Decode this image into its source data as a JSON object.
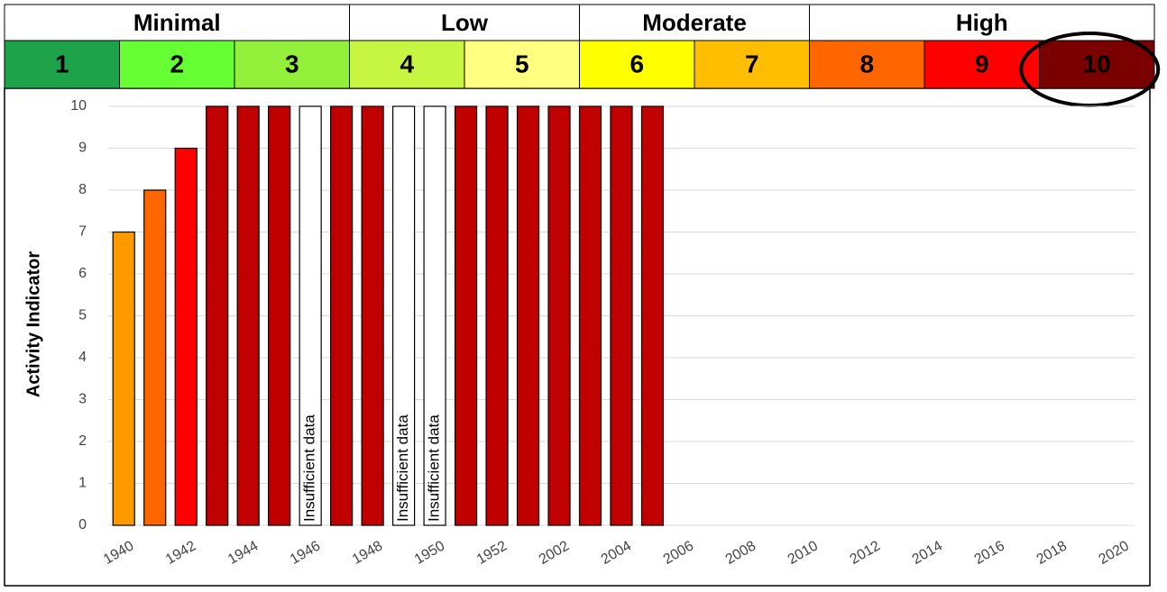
{
  "scale": {
    "groups": [
      {
        "label": "Minimal",
        "span": 3
      },
      {
        "label": "Low",
        "span": 2
      },
      {
        "label": "Moderate",
        "span": 2
      },
      {
        "label": "High",
        "span": 3
      }
    ],
    "levels": [
      {
        "label": "1",
        "color": "#1fa34a"
      },
      {
        "label": "2",
        "color": "#66ff33"
      },
      {
        "label": "3",
        "color": "#92f03a"
      },
      {
        "label": "4",
        "color": "#c6f542"
      },
      {
        "label": "5",
        "color": "#ffff80"
      },
      {
        "label": "6",
        "color": "#ffff00"
      },
      {
        "label": "7",
        "color": "#ffbf00"
      },
      {
        "label": "8",
        "color": "#ff6600"
      },
      {
        "label": "9",
        "color": "#ff0000"
      },
      {
        "label": "10",
        "color": "#7b0000"
      }
    ]
  },
  "chart_data": {
    "type": "bar",
    "y_label": "Activity Indicator",
    "categories": [
      "1940",
      null,
      "1942",
      null,
      "1944",
      null,
      "1946",
      null,
      "1948",
      null,
      "1950",
      null,
      "1952",
      null,
      "2002",
      null,
      "2004",
      null,
      "2006",
      null,
      "2008",
      null,
      "2010",
      null,
      "2012",
      null,
      "2014",
      null,
      "2016",
      null,
      "2018",
      null,
      "2020"
    ],
    "values": [
      7,
      8,
      9,
      10,
      10,
      10,
      10,
      10,
      10,
      10,
      10,
      10,
      10,
      10,
      10,
      10,
      10,
      10,
      null,
      null,
      null,
      null,
      null,
      null,
      null,
      null,
      null,
      null,
      null,
      null,
      null,
      null,
      null
    ],
    "colors": [
      "#ff9900",
      "#ff6600",
      "#ff0000",
      "#c00000",
      "#c00000",
      "#c00000",
      "#ffffff",
      "#c00000",
      "#c00000",
      "#ffffff",
      "#ffffff",
      "#c00000",
      "#c00000",
      "#c00000",
      "#c00000",
      "#c00000",
      "#c00000",
      "#c00000",
      null,
      null,
      null,
      null,
      null,
      null,
      null,
      null,
      null,
      null,
      null,
      null,
      null,
      null,
      null
    ],
    "annotations": [
      {
        "index": 6,
        "text": "Insufficient data"
      },
      {
        "index": 9,
        "text": "Insufficient data"
      },
      {
        "index": 10,
        "text": "Insufficient data"
      }
    ],
    "ylim": [
      0,
      10
    ],
    "yticks": [
      0,
      1,
      2,
      3,
      4,
      5,
      6,
      7,
      8,
      9,
      10
    ],
    "grid": true
  }
}
